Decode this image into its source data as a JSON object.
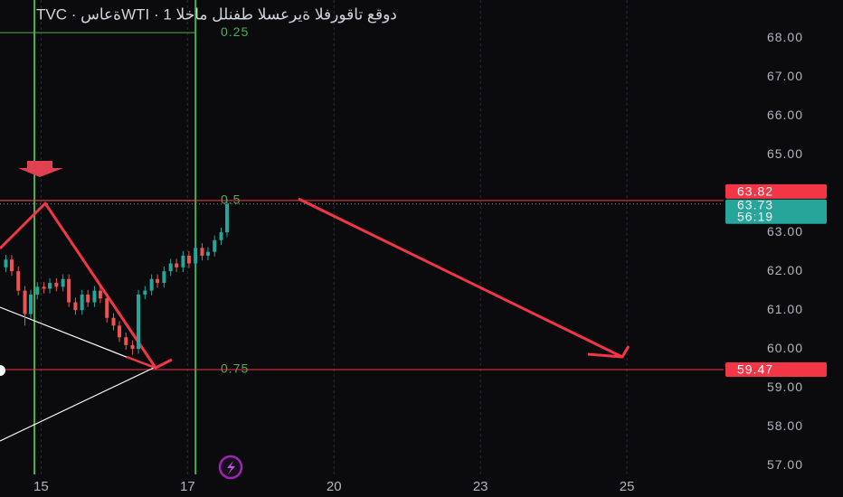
{
  "chart_data": {
    "type": "candlestick",
    "title": "TVC · ةعاسWTI · 1 دوقع تاقورفلا ةيرعسلا طفنلل ماخلا",
    "ylim": [
      56.19,
      68.98
    ],
    "yticks": [
      {
        "value": 57,
        "label": "57.00"
      },
      {
        "value": 58,
        "label": "58.00"
      },
      {
        "value": 59,
        "label": "59.00"
      },
      {
        "value": 60,
        "label": "60.00"
      },
      {
        "value": 61,
        "label": "61.00"
      },
      {
        "value": 62,
        "label": "62.00"
      },
      {
        "value": 63,
        "label": "63.00"
      },
      {
        "value": 64,
        "label": "64.00"
      },
      {
        "value": 65,
        "label": "65.00"
      },
      {
        "value": 66,
        "label": "66.00"
      },
      {
        "value": 67,
        "label": "67.00"
      },
      {
        "value": 68,
        "label": "68.00"
      }
    ],
    "xlim": [
      -0.56,
      9.32
    ],
    "xticks": [
      {
        "value": 0,
        "label": "15"
      },
      {
        "value": 2,
        "label": "17"
      },
      {
        "value": 4,
        "label": "20"
      },
      {
        "value": 6,
        "label": "23"
      },
      {
        "value": 8,
        "label": "25"
      }
    ],
    "grid": true,
    "up_color": "#26a69a",
    "down_color": "#ef5350",
    "candles": {
      "x": [
        -0.48,
        -0.4,
        -0.31,
        -0.22,
        -0.14,
        -0.05,
        0.04,
        0.12,
        0.21,
        0.3,
        0.38,
        0.47,
        0.56,
        0.64,
        0.73,
        0.81,
        0.9,
        0.99,
        1.07,
        1.16,
        1.25,
        1.33,
        1.42,
        1.51,
        1.59,
        1.68,
        1.77,
        1.85,
        1.94,
        2.02,
        2.11,
        2.2,
        2.28,
        2.37,
        2.46,
        2.54
      ],
      "open": [
        62.1,
        62.3,
        62.0,
        61.5,
        60.9,
        61.4,
        61.6,
        61.55,
        61.7,
        61.6,
        61.8,
        61.2,
        61.0,
        61.4,
        61.2,
        61.5,
        61.3,
        60.8,
        60.6,
        60.3,
        60.1,
        60.0,
        61.4,
        61.5,
        61.8,
        61.7,
        62.0,
        62.2,
        62.1,
        62.4,
        62.2,
        62.6,
        62.4,
        62.5,
        62.8,
        63.0
      ],
      "high": [
        62.42,
        62.42,
        62.12,
        61.62,
        61.52,
        61.72,
        61.72,
        61.82,
        61.82,
        61.92,
        61.92,
        61.32,
        61.52,
        61.52,
        61.62,
        61.62,
        61.42,
        60.92,
        60.72,
        60.42,
        60.22,
        61.52,
        61.62,
        61.92,
        61.92,
        62.12,
        62.32,
        62.32,
        62.52,
        62.52,
        62.72,
        62.72,
        62.62,
        62.92,
        63.12,
        63.85
      ],
      "low": [
        61.98,
        61.88,
        61.38,
        60.6,
        60.78,
        61.28,
        61.43,
        61.43,
        61.48,
        61.48,
        61.08,
        60.88,
        60.88,
        61.08,
        61.08,
        61.18,
        60.68,
        60.48,
        60.18,
        59.98,
        59.85,
        59.88,
        61.28,
        61.38,
        61.58,
        61.58,
        61.88,
        61.98,
        61.98,
        62.08,
        62.08,
        62.28,
        62.28,
        62.38,
        62.68,
        62.88
      ],
      "close": [
        62.3,
        62.0,
        61.5,
        60.9,
        61.4,
        61.6,
        61.55,
        61.7,
        61.6,
        61.8,
        61.2,
        61.0,
        61.4,
        61.2,
        61.5,
        61.3,
        60.8,
        60.6,
        60.3,
        60.1,
        60.0,
        61.4,
        61.5,
        61.8,
        61.7,
        62.0,
        62.2,
        62.1,
        62.4,
        62.2,
        62.6,
        62.4,
        62.5,
        62.8,
        63.0,
        63.73
      ]
    },
    "fib_levels": {
      "values": [
        0.25,
        0.5,
        0.75
      ],
      "prices": [
        68.14,
        63.82,
        59.47
      ],
      "color": "#4caf50"
    },
    "vlines": {
      "x": [
        -0.09,
        2.11
      ],
      "color": "#4caf50"
    },
    "price_lines": {
      "values": [
        63.82,
        59.47
      ],
      "color": "#f23645"
    },
    "last_price": 63.73,
    "countdown": "56:19"
  }
}
